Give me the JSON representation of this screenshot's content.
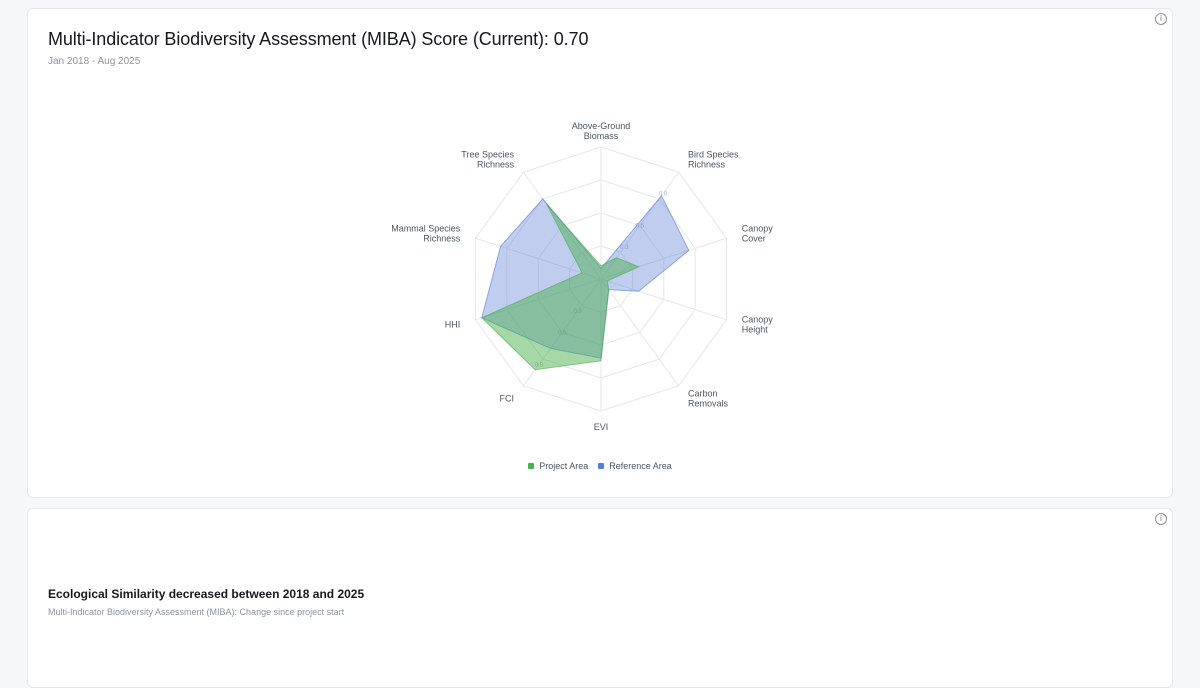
{
  "card1": {
    "title": "Multi-Indicator Biodiversity Assessment (MIBA) Score (Current): 0.70",
    "subtitle": "Jan 2018 - Aug 2025",
    "info_icon": "info-icon"
  },
  "card2": {
    "title": "Ecological Similarity decreased between 2018 and 2025",
    "subtitle": "Multi-Indicator Biodiversity Assessment (MIBA): Change since project start",
    "info_icon": "info-icon"
  },
  "chart_data": {
    "type": "radar",
    "axes": [
      [
        "Above-Ground",
        "Biomass"
      ],
      [
        "Bird Species",
        "Richness"
      ],
      [
        "Canopy",
        "Cover"
      ],
      [
        "Canopy",
        "Height"
      ],
      [
        "Carbon",
        "Removals"
      ],
      [
        "EVI"
      ],
      [
        "FCI"
      ],
      [
        "HHI"
      ],
      [
        "Mammal Species",
        "Richness"
      ],
      [
        "Tree Species",
        "Richness"
      ]
    ],
    "rlim": [
      0,
      1
    ],
    "ring_labels": [
      "0.3",
      "0.5",
      "0.8"
    ],
    "series": [
      {
        "name": "Project Area",
        "color": "#4caf50",
        "values": [
          0.1,
          0.2,
          0.3,
          0.05,
          0.1,
          0.62,
          0.85,
          0.95,
          0.15,
          0.7
        ]
      },
      {
        "name": "Reference Area",
        "color": "#5a7bd6",
        "values": [
          0.08,
          0.78,
          0.7,
          0.3,
          0.1,
          0.6,
          0.65,
          0.95,
          0.8,
          0.75
        ]
      }
    ],
    "legend_position": "bottom"
  }
}
